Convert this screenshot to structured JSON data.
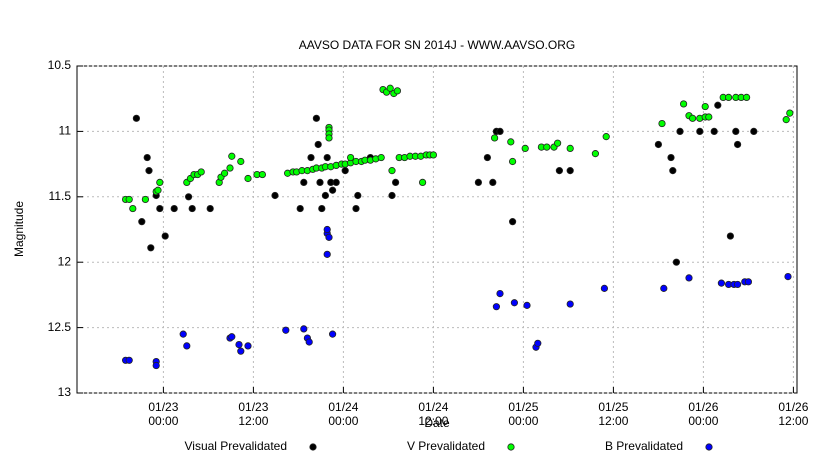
{
  "chart_data": {
    "type": "scatter",
    "title": "AAVSO DATA FOR SN 2014J - WWW.AAVSO.ORG",
    "x_label": "Date",
    "y_label": "Magnitude",
    "xlim": [
      22.52,
      26.52
    ],
    "ylim": [
      13,
      10.5
    ],
    "xticks": [
      {
        "value": 23,
        "label": [
          "01/23",
          "00:00"
        ]
      },
      {
        "value": 23.5,
        "label": [
          "01/23",
          "12:00"
        ]
      },
      {
        "value": 24,
        "label": [
          "01/24",
          "00:00"
        ]
      },
      {
        "value": 24.5,
        "label": [
          "01/24",
          "12:00"
        ]
      },
      {
        "value": 25,
        "label": [
          "01/25",
          "00:00"
        ]
      },
      {
        "value": 25.5,
        "label": [
          "01/25",
          "12:00"
        ]
      },
      {
        "value": 26,
        "label": [
          "01/26",
          "00:00"
        ]
      },
      {
        "value": 26.5,
        "label": [
          "01/26",
          "12:00"
        ]
      }
    ],
    "yticks": [
      10.5,
      11,
      11.5,
      12,
      12.5,
      13
    ],
    "grid": true,
    "series": [
      {
        "name": "Visual Prevalidated",
        "color": "#000000",
        "x": [
          22.85,
          22.88,
          22.91,
          22.92,
          22.93,
          22.96,
          22.98,
          23.01,
          23.06,
          23.14,
          23.16,
          23.26,
          23.62,
          23.76,
          23.78,
          23.82,
          23.85,
          23.86,
          23.87,
          23.88,
          23.9,
          23.91,
          23.93,
          23.94,
          23.96,
          24.01,
          24.07,
          24.08,
          24.15,
          24.27,
          24.29,
          24.75,
          24.8,
          24.83,
          24.85,
          24.87,
          24.94,
          25.2,
          25.26,
          25.75,
          25.82,
          25.83,
          25.85,
          25.87,
          25.98,
          26.06,
          26.08,
          26.15,
          26.18,
          26.19,
          26.28
        ],
        "values": [
          10.9,
          11.69,
          11.2,
          11.3,
          11.89,
          11.49,
          11.59,
          11.8,
          11.59,
          11.5,
          11.59,
          11.59,
          11.49,
          11.59,
          11.39,
          11.2,
          10.9,
          11.1,
          11.39,
          11.59,
          11.49,
          11.2,
          11.39,
          11.45,
          11.39,
          11.3,
          11.59,
          11.49,
          11.2,
          11.49,
          11.39,
          11.39,
          11.2,
          11.39,
          11.0,
          11.0,
          11.69,
          11.3,
          11.3,
          11.1,
          11.2,
          11.3,
          12.0,
          11.0,
          11.0,
          11.0,
          10.8,
          11.8,
          11.0,
          11.1,
          11.0
        ]
      },
      {
        "name": "V Prevalidated",
        "color": "#00ff00",
        "x": [
          22.79,
          22.81,
          22.83,
          22.9,
          22.96,
          22.97,
          22.98,
          23.13,
          23.15,
          23.17,
          23.19,
          23.21,
          23.31,
          23.32,
          23.34,
          23.37,
          23.38,
          23.43,
          23.47,
          23.52,
          23.55,
          23.69,
          23.72,
          23.74,
          23.77,
          23.8,
          23.83,
          23.85,
          23.88,
          23.9,
          23.93,
          23.96,
          23.99,
          24.01,
          24.04,
          24.07,
          24.1,
          24.12,
          24.15,
          24.18,
          24.21,
          23.92,
          23.92,
          23.92,
          23.92,
          24.04,
          24.22,
          24.24,
          24.26,
          24.28,
          24.3,
          24.31,
          24.34,
          24.37,
          24.4,
          24.43,
          24.46,
          24.48,
          24.5,
          24.27,
          24.44,
          24.84,
          24.93,
          24.94,
          25.01,
          25.1,
          25.13,
          25.17,
          25.19,
          25.26,
          25.4,
          25.46,
          25.77,
          25.89,
          25.92,
          25.94,
          25.98,
          26.01,
          26.03,
          26.01,
          26.11,
          26.14,
          26.18,
          26.21,
          26.24,
          26.46,
          26.48
        ],
        "values": [
          11.52,
          11.52,
          11.59,
          11.52,
          11.46,
          11.45,
          11.39,
          11.39,
          11.36,
          11.33,
          11.33,
          11.31,
          11.39,
          11.35,
          11.32,
          11.28,
          11.19,
          11.23,
          11.36,
          11.33,
          11.33,
          11.32,
          11.31,
          11.31,
          11.3,
          11.3,
          11.29,
          11.28,
          11.28,
          11.27,
          11.27,
          11.26,
          11.25,
          11.25,
          11.24,
          11.23,
          11.23,
          11.22,
          11.22,
          11.21,
          11.2,
          10.97,
          10.99,
          11.02,
          11.05,
          11.2,
          10.68,
          10.7,
          10.67,
          10.71,
          10.69,
          11.2,
          11.2,
          11.19,
          11.19,
          11.19,
          11.18,
          11.18,
          11.18,
          11.3,
          11.39,
          11.05,
          11.08,
          11.23,
          11.13,
          11.12,
          11.12,
          11.12,
          11.09,
          11.13,
          11.17,
          11.04,
          10.94,
          10.79,
          10.88,
          10.9,
          10.9,
          10.89,
          10.89,
          10.81,
          10.74,
          10.74,
          10.74,
          10.74,
          10.74,
          10.91,
          10.86
        ]
      },
      {
        "name": "B Prevalidated",
        "color": "#0000ff",
        "x": [
          22.79,
          22.81,
          22.96,
          22.96,
          23.11,
          23.13,
          23.37,
          23.38,
          23.42,
          23.43,
          23.47,
          23.68,
          23.78,
          23.8,
          23.81,
          23.91,
          23.92,
          23.91,
          23.91,
          23.94,
          24.85,
          24.87,
          24.95,
          25.02,
          25.07,
          25.08,
          25.26,
          25.45,
          25.78,
          25.92,
          26.1,
          26.14,
          26.17,
          26.19,
          26.23,
          26.25,
          26.47
        ],
        "values": [
          12.75,
          12.75,
          12.76,
          12.79,
          12.55,
          12.64,
          12.58,
          12.57,
          12.63,
          12.68,
          12.64,
          12.52,
          12.51,
          12.58,
          12.61,
          11.78,
          11.81,
          11.75,
          11.94,
          12.55,
          12.34,
          12.24,
          12.31,
          12.33,
          12.65,
          12.62,
          12.32,
          12.2,
          12.2,
          12.12,
          12.16,
          12.17,
          12.17,
          12.17,
          12.15,
          12.15,
          12.11
        ]
      }
    ]
  }
}
